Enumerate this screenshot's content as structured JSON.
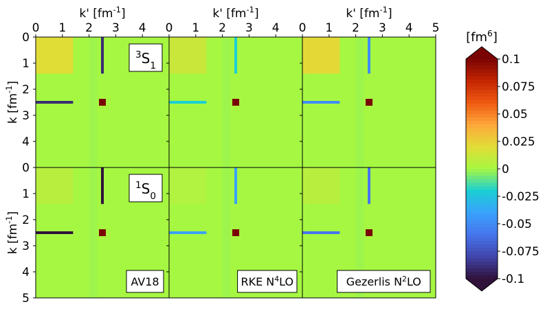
{
  "chart_data": {
    "type": "heatmap",
    "x_axis": {
      "label": "k' [fm⁻¹]",
      "range": [
        0,
        5
      ],
      "ticks": [
        "0",
        "1",
        "2",
        "3",
        "4",
        "5"
      ],
      "position": "top"
    },
    "y_axis": {
      "label": "k [fm⁻¹]",
      "range": [
        0,
        5
      ],
      "ticks": [
        "0",
        "1",
        "2",
        "3",
        "4",
        "5"
      ],
      "inverted": true
    },
    "columns": [
      "AV18",
      "RKE N⁴LO",
      "Gezerlis N²LO"
    ],
    "rows": [
      "³S₁",
      "¹S₀"
    ],
    "grid": false,
    "colorbar": {
      "title": "[fm⁶]",
      "range": [
        -0.1,
        0.1
      ],
      "extend": "both",
      "ticks": [
        {
          "v": 0.1,
          "t": "0.1"
        },
        {
          "v": 0.075,
          "t": "0.075"
        },
        {
          "v": 0.05,
          "t": "0.05"
        },
        {
          "v": 0.025,
          "t": "0.025"
        },
        {
          "v": 0,
          "t": "0"
        },
        {
          "v": -0.025,
          "t": "-0.025"
        },
        {
          "v": -0.05,
          "t": "-0.05"
        },
        {
          "v": -0.075,
          "t": "-0.075"
        },
        {
          "v": -0.1,
          "t": "-0.1"
        }
      ]
    },
    "panels": [
      {
        "row": 0,
        "col": 0,
        "label": "³S₁",
        "label_position": "top-right",
        "background": 0.0,
        "low_k_block": {
          "k_range": [
            0,
            1.4
          ],
          "value": 0.02
        },
        "spike_at": 2.5,
        "spike_value": -0.09,
        "peak_value": 0.1
      },
      {
        "row": 0,
        "col": 1,
        "background": 0.0,
        "low_k_block": {
          "k_range": [
            0,
            1.4
          ],
          "value": 0.012
        },
        "spike_at": 2.5,
        "spike_value": -0.02,
        "peak_value": 0.1
      },
      {
        "row": 0,
        "col": 2,
        "background": 0.0,
        "low_k_block": {
          "k_range": [
            0,
            1.4
          ],
          "value": 0.022
        },
        "spike_at": 2.5,
        "spike_value": -0.05,
        "peak_value": 0.1
      },
      {
        "row": 1,
        "col": 0,
        "label": "¹S₀",
        "label_position": "top-right",
        "sublabel": "AV18",
        "background": 0.0,
        "low_k_block": {
          "k_range": [
            0,
            1.4
          ],
          "value": 0.006
        },
        "spike_at": 2.5,
        "spike_value": -0.1,
        "peak_value": 0.1
      },
      {
        "row": 1,
        "col": 1,
        "sublabel": "RKE N⁴LO",
        "background": 0.0,
        "low_k_block": {
          "k_range": [
            0,
            1.4
          ],
          "value": 0.004
        },
        "spike_at": 2.5,
        "spike_value": -0.04,
        "peak_value": 0.1
      },
      {
        "row": 1,
        "col": 2,
        "sublabel": "Gezerlis N²LO",
        "background": 0.0,
        "low_k_block": {
          "k_range": [
            0,
            1.4
          ],
          "value": 0.006
        },
        "spike_at": 2.5,
        "spike_value": -0.06,
        "peak_value": 0.1
      }
    ]
  }
}
